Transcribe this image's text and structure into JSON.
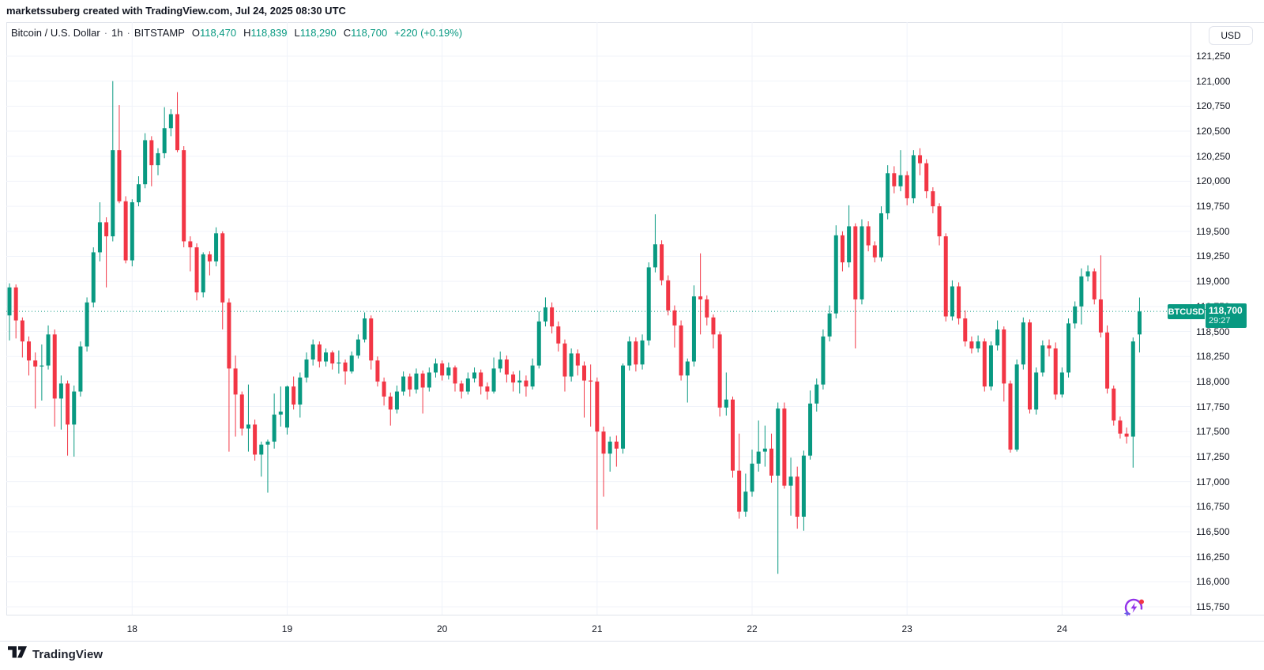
{
  "attribution": "marketssuberg created with TradingView.com, Jul 24, 2025 08:30 UTC",
  "legend": {
    "symbol_title": "Bitcoin / U.S. Dollar",
    "separator": "·",
    "interval": "1h",
    "exchange": "BITSTAMP",
    "o_label": "O",
    "o_value": "118,470",
    "h_label": "H",
    "h_value": "118,839",
    "l_label": "L",
    "l_value": "118,290",
    "c_label": "C",
    "c_value": "118,700",
    "change": "+220 (+0.19%)"
  },
  "price_axis": {
    "currency_button": "USD",
    "labels": [
      {
        "v": 121250,
        "t": "121,250"
      },
      {
        "v": 121000,
        "t": "121,000"
      },
      {
        "v": 120750,
        "t": "120,750"
      },
      {
        "v": 120500,
        "t": "120,500"
      },
      {
        "v": 120250,
        "t": "120,250"
      },
      {
        "v": 120000,
        "t": "120,000"
      },
      {
        "v": 119750,
        "t": "119,750"
      },
      {
        "v": 119500,
        "t": "119,500"
      },
      {
        "v": 119250,
        "t": "119,250"
      },
      {
        "v": 119000,
        "t": "119,000"
      },
      {
        "v": 118750,
        "t": "118,750"
      },
      {
        "v": 118500,
        "t": "118,500"
      },
      {
        "v": 118250,
        "t": "118,250"
      },
      {
        "v": 118000,
        "t": "118,000"
      },
      {
        "v": 117750,
        "t": "117,750"
      },
      {
        "v": 117500,
        "t": "117,500"
      },
      {
        "v": 117250,
        "t": "117,250"
      },
      {
        "v": 117000,
        "t": "117,000"
      },
      {
        "v": 116750,
        "t": "116,750"
      },
      {
        "v": 116500,
        "t": "116,500"
      },
      {
        "v": 116250,
        "t": "116,250"
      },
      {
        "v": 116000,
        "t": "116,000"
      },
      {
        "v": 115750,
        "t": "115,750"
      }
    ]
  },
  "price_label": {
    "symbol": "BTCUSD",
    "price": "118,700",
    "countdown": "29:27",
    "value": 118700
  },
  "watermark": {
    "logo_text": "TradingView"
  },
  "colors": {
    "up": "#089981",
    "down": "#F23645",
    "grid": "#F0F3FA",
    "text": "#131722",
    "border": "#E0E3EB",
    "label_bg": "#089981",
    "label_text": "#FFFFFF",
    "accent_purple": "#9334E9",
    "alert_red": "#F23645"
  },
  "chart_data": {
    "type": "candlestick",
    "title": "Bitcoin / U.S. Dollar",
    "symbol": "BTCUSD",
    "exchange": "BITSTAMP",
    "timeframe": "1h",
    "ylim": [
      115750,
      121250
    ],
    "grid": true,
    "current_price": 118700,
    "current_bar": {
      "open": 118470,
      "high": 118839,
      "low": 118290,
      "close": 118700,
      "change": 220,
      "change_pct": 0.19
    },
    "day_ticks": [
      {
        "label": "18",
        "i": 19
      },
      {
        "label": "19",
        "i": 43
      },
      {
        "label": "20",
        "i": 67
      },
      {
        "label": "21",
        "i": 91
      },
      {
        "label": "22",
        "i": 115
      },
      {
        "label": "23",
        "i": 139
      },
      {
        "label": "24",
        "i": 163
      }
    ],
    "ohlc_order": [
      "open",
      "high",
      "low",
      "close"
    ],
    "candles": [
      [
        118660,
        118980,
        118410,
        118940
      ],
      [
        118940,
        118970,
        118430,
        118610
      ],
      [
        118610,
        118640,
        118240,
        118400
      ],
      [
        118400,
        118450,
        118060,
        118210
      ],
      [
        118210,
        118290,
        117730,
        118150
      ],
      [
        118150,
        118370,
        117810,
        118160
      ],
      [
        118160,
        118560,
        118120,
        118470
      ],
      [
        118470,
        118520,
        117550,
        117830
      ],
      [
        117830,
        118060,
        117520,
        117980
      ],
      [
        117980,
        118010,
        117260,
        117570
      ],
      [
        117570,
        117960,
        117250,
        117900
      ],
      [
        117900,
        118400,
        117850,
        118350
      ],
      [
        118350,
        118840,
        118300,
        118790
      ],
      [
        118790,
        119340,
        118740,
        119290
      ],
      [
        119290,
        119790,
        119200,
        119590
      ],
      [
        119590,
        119640,
        118940,
        119450
      ],
      [
        119450,
        121000,
        119400,
        120310
      ],
      [
        120310,
        120760,
        119780,
        119800
      ],
      [
        119800,
        119850,
        119180,
        119210
      ],
      [
        119210,
        119820,
        119150,
        119790
      ],
      [
        119790,
        120050,
        119750,
        119970
      ],
      [
        119970,
        120480,
        119930,
        120410
      ],
      [
        120410,
        120450,
        119950,
        120160
      ],
      [
        120160,
        120330,
        120060,
        120280
      ],
      [
        120280,
        120740,
        120230,
        120530
      ],
      [
        120530,
        120720,
        120450,
        120670
      ],
      [
        120670,
        120890,
        120290,
        120310
      ],
      [
        120310,
        120350,
        119340,
        119400
      ],
      [
        119400,
        119450,
        119100,
        119340
      ],
      [
        119340,
        119380,
        118810,
        118890
      ],
      [
        118890,
        119290,
        118840,
        119270
      ],
      [
        119270,
        119300,
        119060,
        119200
      ],
      [
        119200,
        119540,
        119150,
        119480
      ],
      [
        119480,
        119500,
        118520,
        118790
      ],
      [
        118790,
        118830,
        117300,
        118130
      ],
      [
        118130,
        118260,
        117450,
        117870
      ],
      [
        117870,
        117900,
        117460,
        117530
      ],
      [
        117530,
        117970,
        117300,
        117570
      ],
      [
        117570,
        117620,
        117210,
        117270
      ],
      [
        117270,
        117400,
        117050,
        117370
      ],
      [
        117370,
        117420,
        116890,
        117400
      ],
      [
        117400,
        117880,
        117330,
        117670
      ],
      [
        117670,
        117950,
        117550,
        117700
      ],
      [
        117540,
        117960,
        117470,
        117950
      ],
      [
        117950,
        118050,
        117720,
        117770
      ],
      [
        117770,
        118090,
        117640,
        118040
      ],
      [
        118040,
        118290,
        117990,
        118220
      ],
      [
        118220,
        118420,
        118160,
        118370
      ],
      [
        118370,
        118400,
        118140,
        118200
      ],
      [
        118200,
        118330,
        118150,
        118290
      ],
      [
        118290,
        118310,
        118120,
        118180
      ],
      [
        118180,
        118310,
        118080,
        118190
      ],
      [
        118190,
        118220,
        117970,
        118100
      ],
      [
        118100,
        118300,
        118080,
        118260
      ],
      [
        118260,
        118470,
        118230,
        118420
      ],
      [
        118420,
        118690,
        118390,
        118630
      ],
      [
        118630,
        118660,
        118120,
        118210
      ],
      [
        118210,
        118250,
        117950,
        118000
      ],
      [
        118000,
        118040,
        117760,
        117850
      ],
      [
        117850,
        117890,
        117560,
        117720
      ],
      [
        117720,
        117960,
        117680,
        117900
      ],
      [
        117900,
        118100,
        117860,
        118050
      ],
      [
        118050,
        118080,
        117850,
        117920
      ],
      [
        117920,
        118130,
        117880,
        118080
      ],
      [
        118080,
        118110,
        117680,
        117940
      ],
      [
        117940,
        118140,
        117900,
        118090
      ],
      [
        118090,
        118230,
        118040,
        118180
      ],
      [
        118180,
        118210,
        118010,
        118060
      ],
      [
        118060,
        118190,
        118020,
        118140
      ],
      [
        118140,
        118160,
        117900,
        117980
      ],
      [
        117980,
        118010,
        117830,
        117900
      ],
      [
        117900,
        118090,
        117870,
        118030
      ],
      [
        118030,
        118140,
        117990,
        118090
      ],
      [
        118090,
        118120,
        117870,
        117950
      ],
      [
        117950,
        117990,
        117820,
        117900
      ],
      [
        117900,
        118240,
        117880,
        118130
      ],
      [
        118130,
        118300,
        118090,
        118220
      ],
      [
        118220,
        118260,
        117990,
        118070
      ],
      [
        118070,
        118100,
        117900,
        117990
      ],
      [
        117990,
        118110,
        117880,
        118010
      ],
      [
        118010,
        118060,
        117850,
        117950
      ],
      [
        117950,
        118230,
        117920,
        118160
      ],
      [
        118160,
        118700,
        118130,
        118600
      ],
      [
        118600,
        118840,
        118550,
        118740
      ],
      [
        118740,
        118790,
        118480,
        118550
      ],
      [
        118550,
        118600,
        118300,
        118380
      ],
      [
        118380,
        118420,
        117900,
        118050
      ],
      [
        118050,
        118330,
        118000,
        118280
      ],
      [
        118280,
        118320,
        118060,
        118160
      ],
      [
        118160,
        118200,
        117640,
        118010
      ],
      [
        118010,
        118170,
        117550,
        118000
      ],
      [
        118000,
        118040,
        116520,
        117500
      ],
      [
        117500,
        117550,
        116850,
        117280
      ],
      [
        117280,
        117450,
        117100,
        117400
      ],
      [
        117400,
        117460,
        117150,
        117330
      ],
      [
        117330,
        118180,
        117280,
        118160
      ],
      [
        118160,
        118450,
        118110,
        118400
      ],
      [
        118400,
        118440,
        118100,
        118170
      ],
      [
        118170,
        118470,
        118120,
        118410
      ],
      [
        118410,
        119190,
        118360,
        119140
      ],
      [
        119140,
        119670,
        119090,
        119370
      ],
      [
        119370,
        119410,
        118960,
        119010
      ],
      [
        119010,
        119060,
        118660,
        118710
      ],
      [
        118710,
        118760,
        118340,
        118560
      ],
      [
        118560,
        118610,
        118010,
        118060
      ],
      [
        118060,
        118230,
        117790,
        118200
      ],
      [
        118200,
        118960,
        118150,
        118850
      ],
      [
        118850,
        119280,
        118470,
        118820
      ],
      [
        118820,
        118860,
        118560,
        118640
      ],
      [
        118640,
        118670,
        118330,
        118470
      ],
      [
        118470,
        118500,
        117650,
        117740
      ],
      [
        117740,
        118090,
        117660,
        117820
      ],
      [
        117820,
        117850,
        117040,
        117110
      ],
      [
        117110,
        117480,
        116630,
        116700
      ],
      [
        116700,
        117080,
        116650,
        116900
      ],
      [
        116900,
        117320,
        116850,
        117180
      ],
      [
        117180,
        117610,
        117100,
        117300
      ],
      [
        117300,
        117560,
        117150,
        117330
      ],
      [
        117330,
        117480,
        116990,
        117060
      ],
      [
        117060,
        117790,
        116080,
        117730
      ],
      [
        117730,
        117790,
        116930,
        116960
      ],
      [
        116960,
        117240,
        116660,
        117050
      ],
      [
        117050,
        117150,
        116530,
        116650
      ],
      [
        116650,
        117310,
        116510,
        117260
      ],
      [
        117260,
        117910,
        117220,
        117780
      ],
      [
        117780,
        118030,
        117700,
        117970
      ],
      [
        117970,
        118520,
        117920,
        118450
      ],
      [
        118450,
        118760,
        118400,
        118680
      ],
      [
        118680,
        119560,
        118630,
        119460
      ],
      [
        119460,
        119500,
        119100,
        119190
      ],
      [
        119190,
        119760,
        119140,
        119550
      ],
      [
        119550,
        119580,
        118330,
        118820
      ],
      [
        118820,
        119620,
        118770,
        119550
      ],
      [
        119550,
        119600,
        119300,
        119360
      ],
      [
        119360,
        119400,
        119190,
        119240
      ],
      [
        119240,
        119750,
        119200,
        119680
      ],
      [
        119680,
        120160,
        119620,
        120080
      ],
      [
        120080,
        120150,
        119880,
        119950
      ],
      [
        119950,
        120310,
        119900,
        120060
      ],
      [
        120060,
        120100,
        119760,
        119830
      ],
      [
        119830,
        120310,
        119780,
        120260
      ],
      [
        120260,
        120330,
        120060,
        120180
      ],
      [
        120180,
        120220,
        119830,
        119900
      ],
      [
        119900,
        119940,
        119680,
        119750
      ],
      [
        119750,
        119780,
        119360,
        119450
      ],
      [
        119450,
        119480,
        118600,
        118650
      ],
      [
        118650,
        119010,
        118610,
        118950
      ],
      [
        118950,
        118990,
        118570,
        118630
      ],
      [
        118630,
        118710,
        118350,
        118400
      ],
      [
        118400,
        118450,
        118280,
        118330
      ],
      [
        118330,
        118460,
        118290,
        118400
      ],
      [
        118400,
        118430,
        117900,
        117950
      ],
      [
        117950,
        118400,
        117910,
        118360
      ],
      [
        118360,
        118610,
        118310,
        118520
      ],
      [
        118520,
        118550,
        117800,
        117980
      ],
      [
        117980,
        118010,
        117290,
        117320
      ],
      [
        117320,
        118220,
        117300,
        118170
      ],
      [
        118170,
        118640,
        118120,
        118590
      ],
      [
        118590,
        118620,
        117680,
        117720
      ],
      [
        117720,
        118140,
        117670,
        118090
      ],
      [
        118090,
        118410,
        118050,
        118360
      ],
      [
        118360,
        118420,
        118250,
        118330
      ],
      [
        118330,
        118390,
        117820,
        117870
      ],
      [
        117870,
        118140,
        117840,
        118090
      ],
      [
        118090,
        118630,
        118040,
        118580
      ],
      [
        118580,
        118800,
        118530,
        118750
      ],
      [
        118750,
        119130,
        118570,
        119050
      ],
      [
        119050,
        119160,
        119000,
        119100
      ],
      [
        119100,
        119130,
        118770,
        118820
      ],
      [
        118820,
        119260,
        118440,
        118490
      ],
      [
        118490,
        118560,
        117880,
        117930
      ],
      [
        117930,
        117960,
        117560,
        117610
      ],
      [
        117610,
        117650,
        117430,
        117480
      ],
      [
        117480,
        117540,
        117380,
        117450
      ],
      [
        117450,
        118440,
        117140,
        118400
      ],
      [
        118470,
        118839,
        118290,
        118700
      ]
    ]
  }
}
